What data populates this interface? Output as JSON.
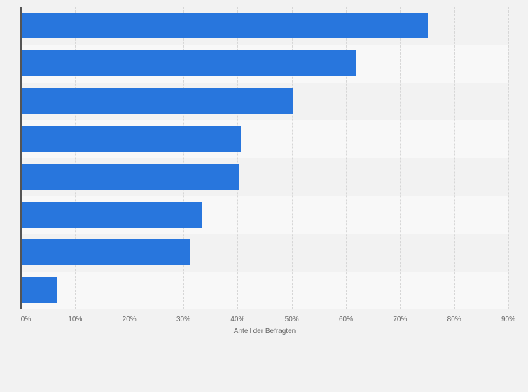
{
  "chart_data": {
    "type": "bar",
    "orientation": "horizontal",
    "title": "",
    "xlabel": "Anteil der Befragten",
    "ylabel": "",
    "categories": [
      "",
      "",
      "",
      "",
      "",
      "",
      "",
      ""
    ],
    "values": [
      75.1,
      61.8,
      50.3,
      40.6,
      40.4,
      33.5,
      31.3,
      6.6
    ],
    "xlim": [
      0,
      90
    ],
    "x_ticks": [
      "0%",
      "10%",
      "20%",
      "30%",
      "40%",
      "50%",
      "60%",
      "70%",
      "80%",
      "90%"
    ],
    "grid": true,
    "legend": null,
    "colors": {
      "bar": "#2876dd",
      "band_dark": "#f2f2f2",
      "band_light": "#f8f8f8",
      "background": "#f2f2f2"
    }
  }
}
